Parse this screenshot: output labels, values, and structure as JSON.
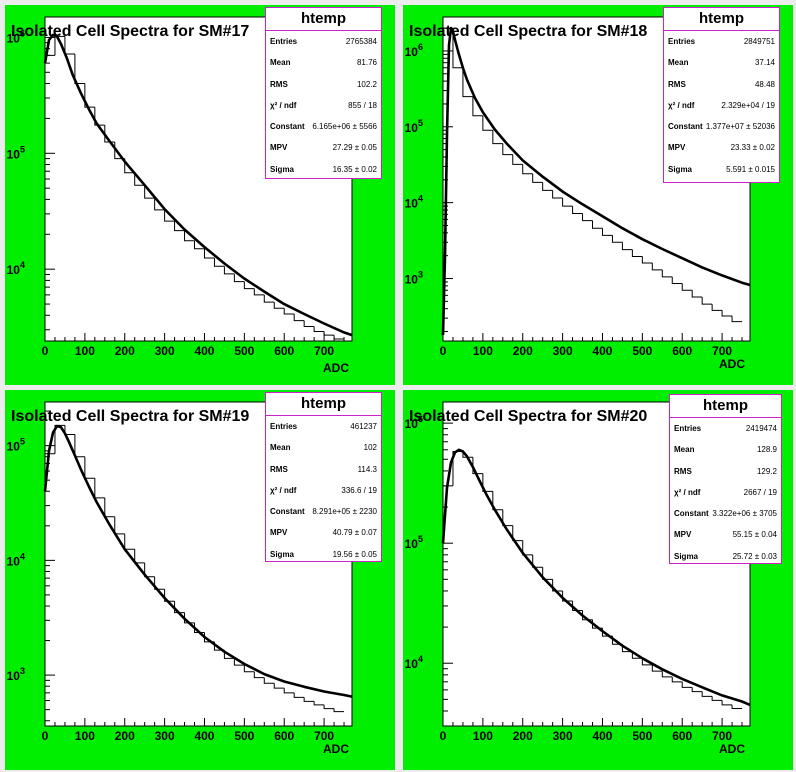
{
  "colors": {
    "pad_bg": "#00ee00",
    "frame_bg": "#ffffff",
    "stats_border": "#cc22cc",
    "selected_border": "#f2e04a"
  },
  "chart_data": [
    {
      "type": "histogram",
      "title": "Isolated Cell Spectra for SM#17",
      "xlabel": "ADC",
      "xlim": [
        0,
        770
      ],
      "xticks": [
        0,
        100,
        200,
        300,
        400,
        500,
        600,
        700
      ],
      "yscale": "log",
      "ylim": [
        2400,
        1500000
      ],
      "yticks": [
        {
          "value": 10000,
          "label": "10^4"
        },
        {
          "value": 100000,
          "label": "10^5"
        },
        {
          "value": 1000000,
          "label": "10^6"
        }
      ],
      "hist_x": [
        0,
        25,
        50,
        75,
        100,
        125,
        150,
        175,
        200,
        225,
        250,
        275,
        300,
        325,
        350,
        375,
        400,
        425,
        450,
        475,
        500,
        525,
        550,
        575,
        600,
        625,
        650,
        675,
        700,
        725
      ],
      "hist_values": [
        700000,
        1020000,
        720000,
        400000,
        250000,
        175000,
        125000,
        90000,
        68000,
        53000,
        41000,
        32500,
        26000,
        21500,
        17600,
        15000,
        12500,
        10600,
        9100,
        7800,
        6800,
        6000,
        5200,
        4600,
        4100,
        3600,
        3200,
        2900,
        2700,
        2500
      ],
      "fit_x": [
        0,
        10,
        20,
        30,
        40,
        55,
        70,
        90,
        110,
        130,
        160,
        200,
        250,
        300,
        350,
        400,
        450,
        500,
        550,
        600,
        650,
        700,
        750,
        770
      ],
      "fit_y": [
        600000,
        950000,
        1050000,
        1020000,
        880000,
        660000,
        470000,
        330000,
        240000,
        180000,
        130000,
        85000,
        53000,
        33000,
        22000,
        15500,
        11200,
        8300,
        6400,
        5000,
        4100,
        3400,
        2850,
        2700
      ],
      "stats_title": "htemp",
      "stats": [
        {
          "label": "Entries",
          "value": "2765384"
        },
        {
          "label": "Mean",
          "value": "81.76"
        },
        {
          "label": "RMS",
          "value": "102.2"
        },
        {
          "label": "χ² / ndf",
          "value": "855 / 18"
        },
        {
          "label": "Constant",
          "value": "6.165e+06 ± 5566"
        },
        {
          "label": "MPV",
          "value": "27.29 ± 0.05"
        },
        {
          "label": "Sigma",
          "value": "16.35 ± 0.02"
        }
      ]
    },
    {
      "type": "histogram",
      "title": "Isolated Cell Spectra for SM#18",
      "xlabel": "ADC",
      "xlim": [
        0,
        770
      ],
      "xticks": [
        0,
        100,
        200,
        300,
        400,
        500,
        600,
        700
      ],
      "yscale": "log",
      "ylim": [
        150,
        2800000
      ],
      "yticks": [
        {
          "value": 1000,
          "label": "10^3"
        },
        {
          "value": 10000,
          "label": "10^4"
        },
        {
          "value": 100000,
          "label": "10^5"
        },
        {
          "value": 1000000,
          "label": "10^6"
        }
      ],
      "hist_x": [
        0,
        25,
        50,
        75,
        100,
        125,
        150,
        175,
        200,
        225,
        250,
        275,
        300,
        325,
        350,
        375,
        400,
        425,
        450,
        475,
        500,
        525,
        550,
        575,
        600,
        625,
        650,
        675,
        700,
        725
      ],
      "hist_values": [
        2000000,
        600000,
        250000,
        140000,
        90000,
        60000,
        43000,
        32000,
        24000,
        18500,
        14500,
        11500,
        9000,
        7200,
        5800,
        4600,
        3700,
        3000,
        2400,
        1950,
        1600,
        1300,
        1050,
        860,
        700,
        570,
        460,
        380,
        320,
        270
      ],
      "fit_x": [
        0,
        5,
        10,
        15,
        20,
        25,
        30,
        40,
        50,
        60,
        80,
        100,
        130,
        160,
        200,
        250,
        300,
        350,
        400,
        450,
        500,
        550,
        600,
        650,
        700,
        750,
        770
      ],
      "fit_y": [
        180,
        2000,
        80000,
        1200000,
        2000000,
        1800000,
        1400000,
        900000,
        600000,
        420000,
        240000,
        155000,
        92000,
        60000,
        36000,
        22000,
        14000,
        9500,
        6600,
        4600,
        3300,
        2450,
        1850,
        1400,
        1100,
        880,
        820
      ],
      "stats_title": "htemp",
      "stats": [
        {
          "label": "Entries",
          "value": "2849751"
        },
        {
          "label": "Mean",
          "value": "37.14"
        },
        {
          "label": "RMS",
          "value": "48.48"
        },
        {
          "label": "χ² / ndf",
          "value": "2.329e+04 / 19"
        },
        {
          "label": "Constant",
          "value": "1.377e+07 ± 52036"
        },
        {
          "label": "MPV",
          "value": "23.33 ± 0.02"
        },
        {
          "label": "Sigma",
          "value": "5.591 ± 0.015"
        }
      ]
    },
    {
      "type": "histogram",
      "title": "Isolated Cell Spectra for SM#19",
      "xlabel": "ADC",
      "xlim": [
        0,
        770
      ],
      "xticks": [
        0,
        100,
        200,
        300,
        400,
        500,
        600,
        700
      ],
      "yscale": "log",
      "ylim": [
        360,
        240000
      ],
      "yticks": [
        {
          "value": 1000,
          "label": "10^3"
        },
        {
          "value": 10000,
          "label": "10^4"
        },
        {
          "value": 100000,
          "label": "10^5"
        }
      ],
      "hist_x": [
        0,
        25,
        50,
        75,
        100,
        125,
        150,
        175,
        200,
        225,
        250,
        275,
        300,
        325,
        350,
        375,
        400,
        425,
        450,
        475,
        500,
        525,
        550,
        575,
        600,
        625,
        650,
        675,
        700,
        725
      ],
      "hist_values": [
        85000,
        150000,
        125000,
        80000,
        52000,
        35000,
        24000,
        17000,
        12500,
        9500,
        7200,
        5600,
        4400,
        3500,
        2850,
        2350,
        1950,
        1650,
        1400,
        1220,
        1070,
        950,
        850,
        770,
        700,
        640,
        590,
        550,
        510,
        480
      ],
      "fit_x": [
        0,
        10,
        20,
        30,
        40,
        50,
        60,
        75,
        90,
        110,
        130,
        160,
        200,
        250,
        300,
        350,
        400,
        450,
        500,
        550,
        600,
        650,
        700,
        750,
        770
      ],
      "fit_y": [
        40000,
        90000,
        130000,
        148000,
        145000,
        128000,
        108000,
        82000,
        62000,
        44000,
        32000,
        21000,
        12500,
        7500,
        4700,
        3100,
        2150,
        1600,
        1250,
        1020,
        880,
        790,
        720,
        670,
        650
      ],
      "stats_title": "htemp",
      "stats": [
        {
          "label": "Entries",
          "value": "461237"
        },
        {
          "label": "Mean",
          "value": "102"
        },
        {
          "label": "RMS",
          "value": "114.3"
        },
        {
          "label": "χ² / ndf",
          "value": "336.6 / 19"
        },
        {
          "label": "Constant",
          "value": "8.291e+05 ± 2230"
        },
        {
          "label": "MPV",
          "value": "40.79 ± 0.07"
        },
        {
          "label": "Sigma",
          "value": "19.56 ± 0.05"
        }
      ]
    },
    {
      "type": "histogram",
      "title": "Isolated Cell Spectra for SM#20",
      "xlabel": "ADC",
      "xlim": [
        0,
        770
      ],
      "xticks": [
        0,
        100,
        200,
        300,
        400,
        500,
        600,
        700
      ],
      "yscale": "log",
      "ylim": [
        3000,
        1500000
      ],
      "yticks": [
        {
          "value": 10000,
          "label": "10^4"
        },
        {
          "value": 100000,
          "label": "10^5"
        },
        {
          "value": 1000000,
          "label": "10^6"
        }
      ],
      "hist_x": [
        0,
        25,
        50,
        75,
        100,
        125,
        150,
        175,
        200,
        225,
        250,
        275,
        300,
        325,
        350,
        375,
        400,
        425,
        450,
        475,
        500,
        525,
        550,
        575,
        600,
        625,
        650,
        675,
        700,
        725
      ],
      "hist_values": [
        300000,
        580000,
        520000,
        380000,
        270000,
        190000,
        140000,
        105000,
        80000,
        63000,
        50000,
        40000,
        33000,
        27500,
        23000,
        19600,
        16800,
        14400,
        12500,
        11000,
        9700,
        8600,
        7700,
        7000,
        6300,
        5800,
        5300,
        4900,
        4500,
        4200
      ],
      "fit_x": [
        0,
        10,
        20,
        30,
        40,
        50,
        60,
        75,
        90,
        110,
        130,
        160,
        200,
        250,
        300,
        350,
        400,
        450,
        500,
        550,
        600,
        650,
        700,
        750,
        770
      ],
      "fit_y": [
        100000,
        290000,
        470000,
        570000,
        600000,
        580000,
        530000,
        430000,
        340000,
        250000,
        190000,
        130000,
        83000,
        52000,
        35000,
        25000,
        18500,
        14000,
        11000,
        8900,
        7400,
        6300,
        5400,
        4800,
        4500
      ],
      "stats_title": "htemp",
      "stats": [
        {
          "label": "Entries",
          "value": "2419474"
        },
        {
          "label": "Mean",
          "value": "128.9"
        },
        {
          "label": "RMS",
          "value": "129.2"
        },
        {
          "label": "χ² / ndf",
          "value": "2667 / 19"
        },
        {
          "label": "Constant",
          "value": "3.322e+06 ± 3705"
        },
        {
          "label": "MPV",
          "value": "55.15 ± 0.04"
        },
        {
          "label": "Sigma",
          "value": "25.72 ± 0.03"
        }
      ]
    }
  ]
}
